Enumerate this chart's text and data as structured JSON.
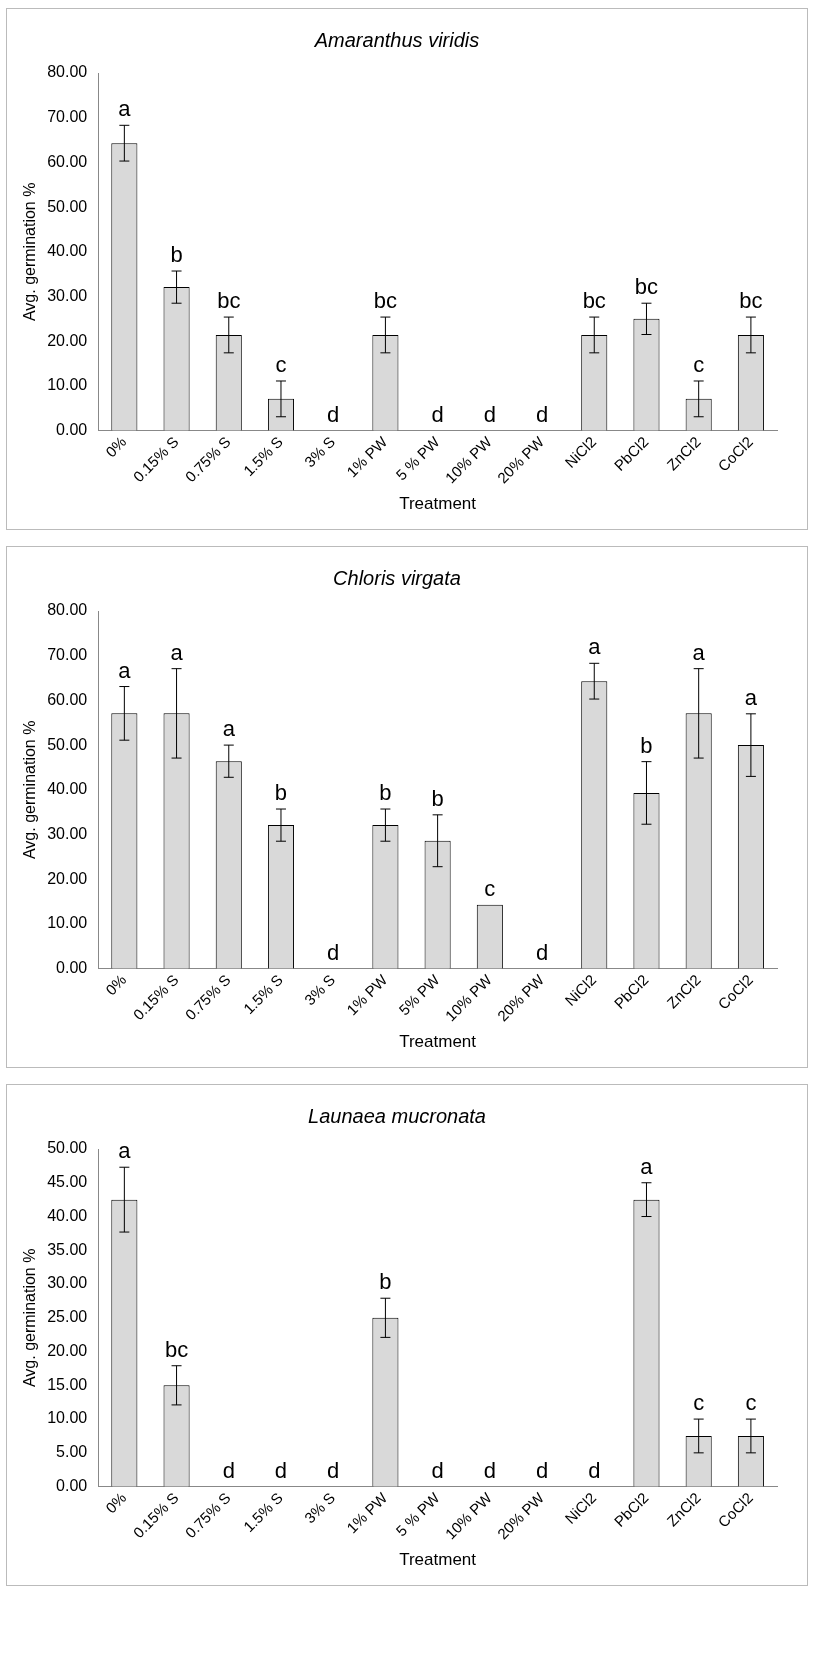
{
  "chart_data": [
    {
      "type": "bar",
      "title": "Amaranthus viridis",
      "xlabel": "Treatment",
      "ylabel": "Avg. germination %",
      "color": "#d9d9d9",
      "categories": [
        "0%",
        "0.15% S",
        "0.75% S",
        "1.5% S",
        "3% S",
        "1% PW",
        "5 % PW",
        "10% PW",
        "20% PW",
        "NiCl2",
        "PbCl2",
        "ZnCl2",
        "CoCl2"
      ],
      "values": [
        64.3,
        32.1,
        21.4,
        7.1,
        0,
        21.4,
        0,
        0,
        0,
        21.4,
        25,
        7.1,
        21.4
      ],
      "errors": [
        4,
        3.6,
        4,
        4,
        null,
        4,
        null,
        null,
        null,
        4,
        3.5,
        4,
        4
      ],
      "ylim": [
        0,
        80
      ],
      "yticks": [
        {
          "value": 0,
          "label": "0.00"
        },
        {
          "value": 10,
          "label": "10.00"
        },
        {
          "value": 20,
          "label": "20.00"
        },
        {
          "value": 30,
          "label": "30.00"
        },
        {
          "value": 40,
          "label": "40.00"
        },
        {
          "value": 50,
          "label": "50.00"
        },
        {
          "value": 60,
          "label": "60.00"
        },
        {
          "value": 70,
          "label": "70.00"
        },
        {
          "value": 80,
          "label": "80.00"
        }
      ],
      "annotations": [
        {
          "text": "a",
          "x": "0%",
          "y": 64.3
        },
        {
          "text": "b",
          "x": "0.15% S",
          "y": 32.1
        },
        {
          "text": "bc",
          "x": "0.75% S",
          "y": 21.4
        },
        {
          "text": "c",
          "x": "1.5% S",
          "y": 7.1
        },
        {
          "text": "d",
          "x": "3% S",
          "y": 0
        },
        {
          "text": "bc",
          "x": "1% PW",
          "y": 21.4
        },
        {
          "text": "d",
          "x": "5 % PW",
          "y": 0
        },
        {
          "text": "d",
          "x": "10% PW",
          "y": 0
        },
        {
          "text": "d",
          "x": "20% PW",
          "y": 0
        },
        {
          "text": "bc",
          "x": "NiCl2",
          "y": 21.4
        },
        {
          "text": "bc",
          "x": "PbCl2",
          "y": 25
        },
        {
          "text": "c",
          "x": "ZnCl2",
          "y": 7.1
        },
        {
          "text": "bc",
          "x": "CoCl2",
          "y": 21.4
        }
      ]
    },
    {
      "type": "bar",
      "title": "Chloris virgata",
      "xlabel": "Treatment",
      "ylabel": "Avg. germination %",
      "color": "#d9d9d9",
      "categories": [
        "0%",
        "0.15% S",
        "0.75% S",
        "1.5% S",
        "3% S",
        "1% PW",
        "5% PW",
        "10% PW",
        "20% PW",
        "NiCl2",
        "PbCl2",
        "ZnCl2",
        "CoCl2"
      ],
      "values": [
        57.1,
        57.1,
        46.4,
        32.1,
        0,
        32.1,
        28.6,
        14.3,
        0,
        64.3,
        39.3,
        57.1,
        50
      ],
      "errors": [
        6,
        10,
        3.6,
        3.6,
        null,
        3.6,
        5.8,
        null,
        null,
        4,
        7,
        10,
        7
      ],
      "ylim": [
        0,
        80
      ],
      "yticks": [
        {
          "value": 0,
          "label": "0.00"
        },
        {
          "value": 10,
          "label": "10.00"
        },
        {
          "value": 20,
          "label": "20.00"
        },
        {
          "value": 30,
          "label": "30.00"
        },
        {
          "value": 40,
          "label": "40.00"
        },
        {
          "value": 50,
          "label": "50.00"
        },
        {
          "value": 60,
          "label": "60.00"
        },
        {
          "value": 70,
          "label": "70.00"
        },
        {
          "value": 80,
          "label": "80.00"
        }
      ],
      "annotations": [
        {
          "text": "a",
          "x": "0%",
          "y": 57.1
        },
        {
          "text": "a",
          "x": "0.15% S",
          "y": 67.1
        },
        {
          "text": "a",
          "x": "0.75% S",
          "y": 46.4
        },
        {
          "text": "b",
          "x": "1.5% S",
          "y": 32.1
        },
        {
          "text": "d",
          "x": "3% S",
          "y": 0
        },
        {
          "text": "b",
          "x": "1% PW",
          "y": 32.1
        },
        {
          "text": "b",
          "x": "5% PW",
          "y": 28.6
        },
        {
          "text": "c",
          "x": "10% PW",
          "y": 14.3
        },
        {
          "text": "d",
          "x": "20% PW",
          "y": 0
        },
        {
          "text": "a",
          "x": "NiCl2",
          "y": 64.3
        },
        {
          "text": "b",
          "x": "PbCl2",
          "y": 39.3
        },
        {
          "text": "a",
          "x": "ZnCl2",
          "y": 67.1
        },
        {
          "text": "a",
          "x": "CoCl2",
          "y": 50
        }
      ]
    },
    {
      "type": "bar",
      "title": "Launaea mucronata",
      "xlabel": "Treatment",
      "ylabel": "Avg. germination %",
      "color": "#d9d9d9",
      "categories": [
        "0%",
        "0.15% S",
        "0.75% S",
        "1.5% S",
        "3% S",
        "1% PW",
        "5 % PW",
        "10% PW",
        "20% PW",
        "NiCl2",
        "PbCl2",
        "ZnCl2",
        "CoCl2"
      ],
      "values": [
        42.5,
        15,
        0,
        0,
        0,
        25,
        0,
        0,
        0,
        0,
        42.5,
        7.5,
        7.5
      ],
      "errors": [
        4.8,
        2.9,
        null,
        null,
        null,
        2.9,
        null,
        null,
        null,
        null,
        2.5,
        2.5,
        2.5
      ],
      "ylim": [
        0,
        50
      ],
      "yticks": [
        {
          "value": 0,
          "label": "0.00"
        },
        {
          "value": 5,
          "label": "5.00"
        },
        {
          "value": 10,
          "label": "10.00"
        },
        {
          "value": 15,
          "label": "15.00"
        },
        {
          "value": 20,
          "label": "20.00"
        },
        {
          "value": 25,
          "label": "25.00"
        },
        {
          "value": 30,
          "label": "30.00"
        },
        {
          "value": 35,
          "label": "35.00"
        },
        {
          "value": 40,
          "label": "40.00"
        },
        {
          "value": 45,
          "label": "45.00"
        },
        {
          "value": 50,
          "label": "50.00"
        }
      ],
      "annotations": [
        {
          "text": "a",
          "x": "0%",
          "y": 42.5
        },
        {
          "text": "bc",
          "x": "0.15% S",
          "y": 15
        },
        {
          "text": "d",
          "x": "0.75% S",
          "y": 0
        },
        {
          "text": "d",
          "x": "1.5% S",
          "y": 0
        },
        {
          "text": "d",
          "x": "3% S",
          "y": 0
        },
        {
          "text": "b",
          "x": "1% PW",
          "y": 25
        },
        {
          "text": "d",
          "x": "5 % PW",
          "y": 0
        },
        {
          "text": "d",
          "x": "10% PW",
          "y": 0
        },
        {
          "text": "d",
          "x": "20% PW",
          "y": 0
        },
        {
          "text": "d",
          "x": "NiCl2",
          "y": 0
        },
        {
          "text": "a",
          "x": "PbCl2",
          "y": 42.5
        },
        {
          "text": "c",
          "x": "ZnCl2",
          "y": 7.5
        },
        {
          "text": "c",
          "x": "CoCl2",
          "y": 7.5
        }
      ]
    }
  ]
}
